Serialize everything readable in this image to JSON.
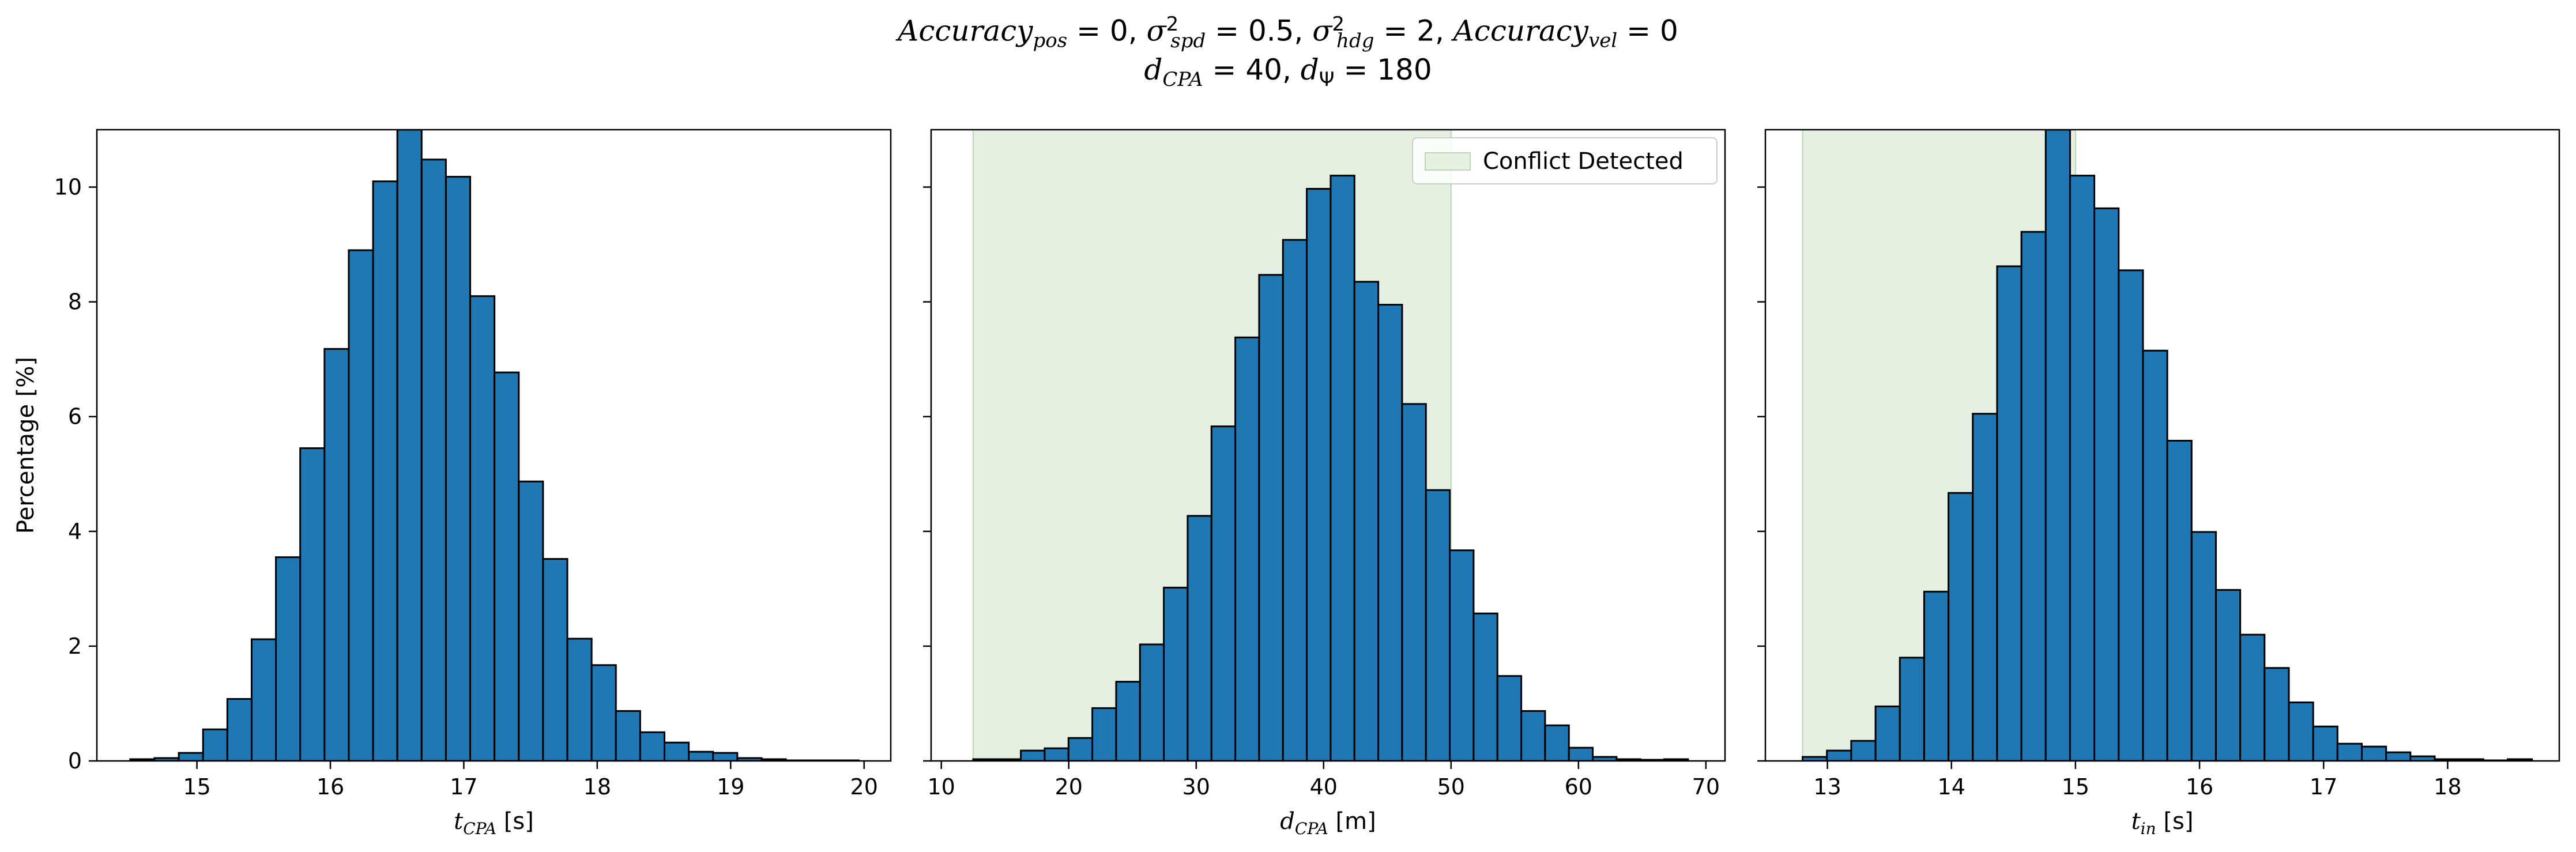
{
  "figure": {
    "title_line1": {
      "accuracy_pos": "0",
      "sigma_spd": "0.5",
      "sigma_hdg": "2",
      "accuracy_vel": "0"
    },
    "title_line2": {
      "d_cpa": "40",
      "d_psi": "180"
    }
  },
  "chart_data": [
    {
      "type": "bar",
      "subtype": "histogram",
      "xlabel": "t_CPA [s]",
      "xlabel_main": "t",
      "xlabel_sub": "CPA",
      "xlabel_unit": " [s]",
      "ylabel": "Percentage [%]",
      "xlim": [
        14.25,
        20.2
      ],
      "ylim": [
        0,
        11
      ],
      "xticks": [
        15,
        16,
        17,
        18,
        19,
        20
      ],
      "yticks": [
        0,
        2,
        4,
        6,
        8,
        10
      ],
      "bin_start": 14.5,
      "bin_width": 0.182,
      "values": [
        0.03,
        0.05,
        0.14,
        0.55,
        1.08,
        2.12,
        3.55,
        5.45,
        7.18,
        8.9,
        10.1,
        11.0,
        10.48,
        10.18,
        8.1,
        6.77,
        4.87,
        3.52,
        2.13,
        1.67,
        0.87,
        0.5,
        0.32,
        0.16,
        0.14,
        0.05,
        0.03,
        0.01,
        0.01,
        0.01
      ],
      "bar_color": "#1f77b4",
      "edge_color": "#000000",
      "shaded_region": null
    },
    {
      "type": "bar",
      "subtype": "histogram",
      "xlabel": "d_CPA [m]",
      "xlabel_main": "d",
      "xlabel_sub": "CPA",
      "xlabel_unit": " [m]",
      "ylabel": "",
      "xlim": [
        9.2,
        71.5
      ],
      "ylim": [
        0,
        11
      ],
      "xticks": [
        10,
        20,
        30,
        40,
        50,
        60,
        70
      ],
      "yticks": [
        0,
        2,
        4,
        6,
        8,
        10
      ],
      "bin_start": 12.5,
      "bin_width": 1.87,
      "values": [
        0.03,
        0.03,
        0.18,
        0.22,
        0.4,
        0.92,
        1.38,
        2.03,
        3.02,
        4.27,
        5.83,
        7.38,
        8.47,
        9.08,
        9.97,
        10.2,
        8.35,
        7.95,
        6.22,
        4.72,
        3.67,
        2.57,
        1.48,
        0.87,
        0.62,
        0.23,
        0.07,
        0.03,
        0.02,
        0.03
      ],
      "bar_color": "#1f77b4",
      "edge_color": "#000000",
      "shaded_region": {
        "x0": 12.5,
        "x1": 50,
        "color": "#e5f0e3",
        "label": "Conflict Detected"
      },
      "legend": {
        "label": "Conflict Detected",
        "placement": "top-right"
      }
    },
    {
      "type": "bar",
      "subtype": "histogram",
      "xlabel": "t_in [s]",
      "xlabel_main": "t",
      "xlabel_sub": "in",
      "xlabel_unit": " [s]",
      "ylabel": "",
      "xlim": [
        12.5,
        18.9
      ],
      "ylim": [
        0,
        11
      ],
      "xticks": [
        13,
        14,
        15,
        16,
        17,
        18
      ],
      "yticks": [
        0,
        2,
        4,
        6,
        8,
        10
      ],
      "bin_start": 12.8,
      "bin_width": 0.196,
      "values": [
        0.07,
        0.18,
        0.35,
        0.95,
        1.8,
        2.95,
        4.67,
        6.05,
        8.62,
        9.22,
        11.0,
        10.2,
        9.63,
        8.55,
        7.15,
        5.58,
        3.99,
        2.98,
        2.2,
        1.62,
        1.02,
        0.6,
        0.3,
        0.25,
        0.15,
        0.08,
        0.03,
        0.03,
        0.01,
        0.03
      ],
      "bar_color": "#1f77b4",
      "edge_color": "#000000",
      "shaded_region": {
        "x0": 12.8,
        "x1": 15.0,
        "color": "#e5f0e3",
        "label": "Conflict Detected"
      }
    }
  ]
}
